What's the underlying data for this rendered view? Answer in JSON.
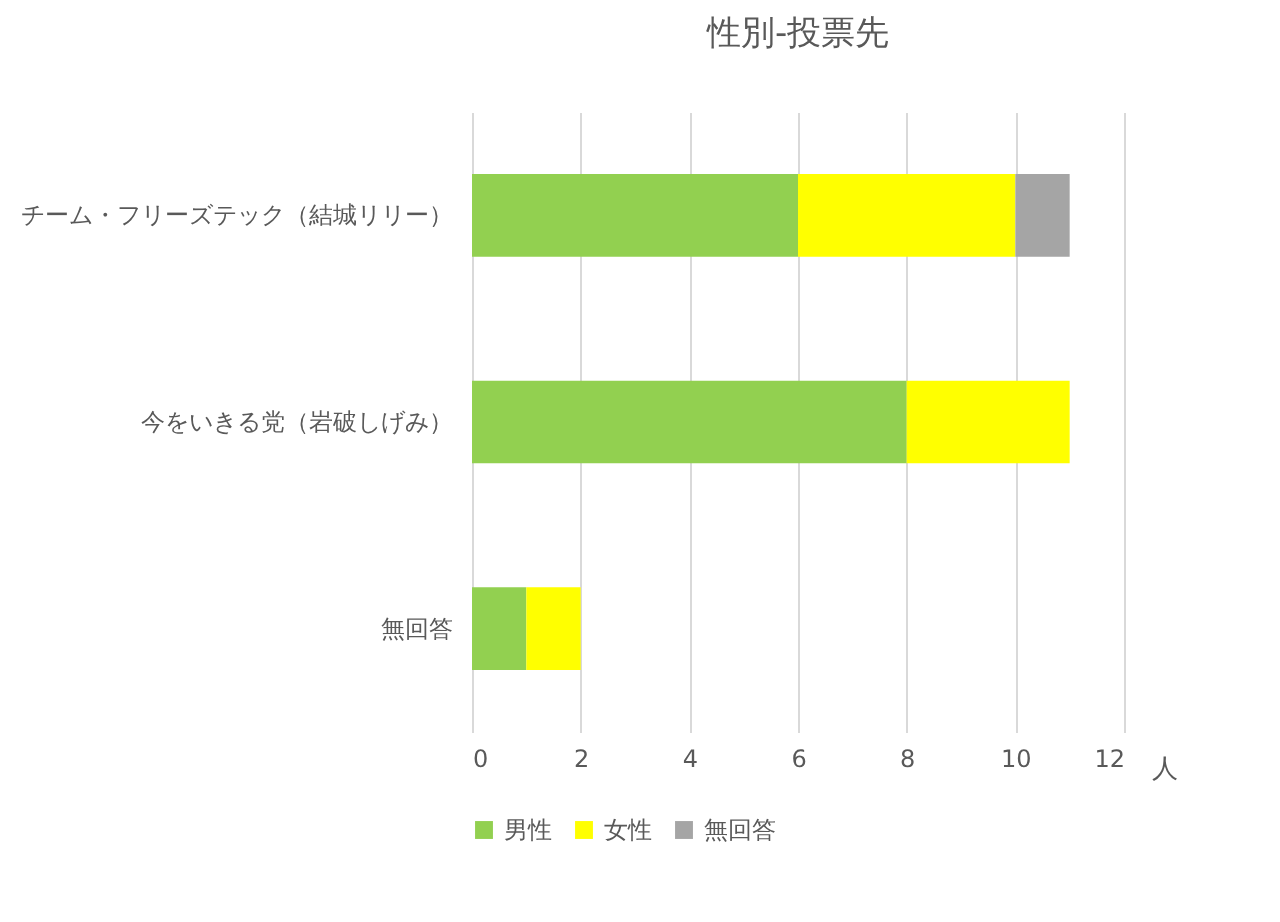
{
  "chart_data": {
    "type": "bar",
    "orientation": "horizontal",
    "stacked": true,
    "title": "性別-投票先",
    "xlabel": "人",
    "categories": [
      "チーム・フリーズテック（結城リリー）",
      "今をいきる党（岩破しげみ）",
      "無回答"
    ],
    "series": [
      {
        "name": "男性",
        "color": "#92d050",
        "values": [
          6,
          8,
          1
        ]
      },
      {
        "name": "女性",
        "color": "#ffff00",
        "values": [
          4,
          3,
          1
        ]
      },
      {
        "name": "無回答",
        "color": "#a5a5a5",
        "values": [
          1,
          null,
          null
        ]
      }
    ],
    "xlim": [
      0,
      12
    ],
    "xticks": [
      0,
      2,
      4,
      6,
      8,
      10,
      12
    ],
    "grid": "x",
    "legend": "bottom"
  }
}
